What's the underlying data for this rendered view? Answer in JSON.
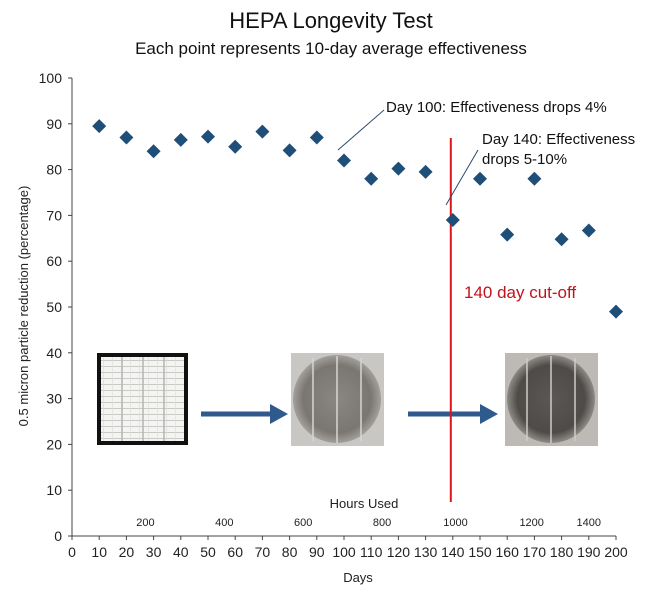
{
  "title": "HEPA Longevity Test",
  "subtitle": "Each point represents 10-day average effectiveness",
  "chart_data": {
    "type": "scatter",
    "title": "HEPA Longevity Test",
    "subtitle": "Each point represents 10-day average effectiveness",
    "xlabel": "Days",
    "ylabel": "0.5 micron particle reduction (percentage)",
    "xlim": [
      0,
      200
    ],
    "ylim": [
      0,
      100
    ],
    "x_ticks": [
      0,
      10,
      20,
      30,
      40,
      50,
      60,
      70,
      80,
      90,
      100,
      110,
      120,
      130,
      140,
      150,
      160,
      170,
      180,
      190,
      200
    ],
    "y_ticks": [
      0,
      10,
      20,
      30,
      40,
      50,
      60,
      70,
      80,
      90,
      100
    ],
    "grid": false,
    "marker": "diamond",
    "marker_color": "#1f4e79",
    "series": [
      {
        "name": "Effectiveness",
        "x": [
          10,
          20,
          30,
          40,
          50,
          60,
          70,
          80,
          90,
          100,
          110,
          120,
          130,
          140,
          150,
          160,
          170,
          180,
          190,
          200
        ],
        "y": [
          89.5,
          87,
          84,
          86.5,
          87.2,
          85,
          88.3,
          84.2,
          87,
          82,
          78,
          80.2,
          79.5,
          69,
          78,
          65.8,
          78,
          64.8,
          66.7,
          49
        ]
      }
    ],
    "secondary_axis": {
      "label": "Hours Used",
      "ticks": [
        {
          "label": "200",
          "day": 27
        },
        {
          "label": "400",
          "day": 56
        },
        {
          "label": "600",
          "day": 85
        },
        {
          "label": "800",
          "day": 114
        },
        {
          "label": "1000",
          "day": 141
        },
        {
          "label": "1200",
          "day": 169
        },
        {
          "label": "1400",
          "day": 190
        }
      ]
    },
    "cutoff": {
      "day": 140,
      "label": "140 day cut-off",
      "color": "#e0141c"
    },
    "annotations": [
      {
        "lines": [
          "Day 100: Effectiveness drops 4%"
        ],
        "points_to": {
          "x": 98,
          "y": 84
        }
      },
      {
        "lines": [
          "Day 140: Effectiveness",
          "drops 5-10%"
        ],
        "points_to": {
          "x": 138,
          "y": 72
        }
      }
    ],
    "arrow_color": "#2e5a8e"
  }
}
